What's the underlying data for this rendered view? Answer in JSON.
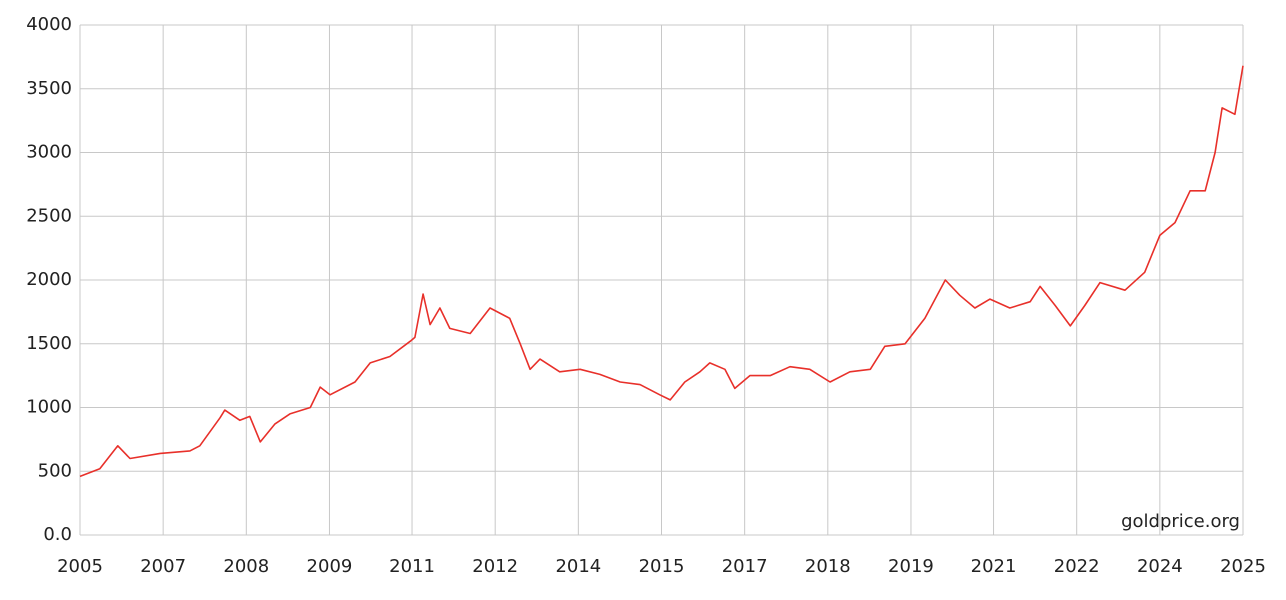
{
  "chart_data": {
    "type": "line",
    "annotation": "goldprice.org",
    "x": [
      2005.0,
      2005.34,
      2005.65,
      2005.86,
      2006.38,
      2006.89,
      2007.06,
      2007.41,
      2007.49,
      2007.75,
      2007.92,
      2008.1,
      2008.35,
      2008.61,
      2008.96,
      2009.13,
      2009.3,
      2009.73,
      2009.99,
      2010.33,
      2010.68,
      2010.76,
      2010.9,
      2011.02,
      2011.19,
      2011.36,
      2011.71,
      2012.05,
      2012.39,
      2012.57,
      2012.74,
      2012.91,
      2013.25,
      2013.6,
      2013.94,
      2014.29,
      2014.63,
      2014.97,
      2015.15,
      2015.4,
      2015.66,
      2015.83,
      2016.09,
      2016.26,
      2016.52,
      2016.87,
      2017.21,
      2017.55,
      2017.9,
      2018.24,
      2018.59,
      2018.84,
      2019.19,
      2019.53,
      2019.88,
      2020.13,
      2020.39,
      2020.65,
      2020.99,
      2021.34,
      2021.51,
      2021.77,
      2022.03,
      2022.28,
      2022.54,
      2022.97,
      2023.31,
      2023.57,
      2023.83,
      2024.09,
      2024.35,
      2024.52,
      2024.64,
      2024.86,
      2025.0
    ],
    "series": [
      {
        "color": "#e8302a",
        "values": [
          460,
          520,
          700,
          600,
          640,
          660,
          700,
          920,
          980,
          900,
          930,
          730,
          870,
          950,
          1000,
          1160,
          1100,
          1200,
          1350,
          1400,
          1520,
          1550,
          1890,
          1650,
          1780,
          1620,
          1580,
          1780,
          1700,
          1500,
          1300,
          1380,
          1280,
          1300,
          1260,
          1200,
          1180,
          1100,
          1060,
          1200,
          1280,
          1350,
          1300,
          1150,
          1250,
          1250,
          1320,
          1300,
          1200,
          1280,
          1300,
          1480,
          1500,
          1700,
          2000,
          1880,
          1780,
          1850,
          1780,
          1830,
          1950,
          1800,
          1640,
          1800,
          1980,
          1920,
          2060,
          2350,
          2450,
          2700,
          2700,
          3000,
          3350,
          3300,
          3680
        ]
      }
    ],
    "xlim": [
      2005,
      2025
    ],
    "xticks": [
      {
        "value": 2005,
        "label": "2005"
      },
      {
        "value": 2006.43,
        "label": "2007"
      },
      {
        "value": 2007.86,
        "label": "2008"
      },
      {
        "value": 2009.29,
        "label": "2009"
      },
      {
        "value": 2010.71,
        "label": "2011"
      },
      {
        "value": 2012.14,
        "label": "2012"
      },
      {
        "value": 2013.57,
        "label": "2014"
      },
      {
        "value": 2015,
        "label": "2015"
      },
      {
        "value": 2016.43,
        "label": "2017"
      },
      {
        "value": 2017.86,
        "label": "2018"
      },
      {
        "value": 2019.29,
        "label": "2019"
      },
      {
        "value": 2020.71,
        "label": "2021"
      },
      {
        "value": 2022.14,
        "label": "2022"
      },
      {
        "value": 2023.57,
        "label": "2024"
      },
      {
        "value": 2025,
        "label": "2025"
      }
    ],
    "ylim": [
      0,
      4000
    ],
    "yticks": [
      {
        "value": 0,
        "label": "0.0"
      },
      500,
      1000,
      1500,
      2000,
      2500,
      3000,
      3500,
      4000
    ],
    "grid": true
  }
}
